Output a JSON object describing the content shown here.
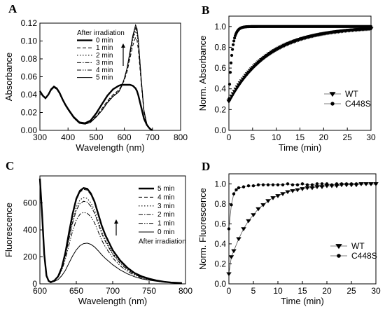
{
  "chart_data": [
    {
      "panel": "A",
      "type": "line",
      "xlabel": "Wavelength (nm)",
      "ylabel": "Absorbance",
      "xlim": [
        300,
        800
      ],
      "ylim": [
        0.0,
        0.12
      ],
      "xticks": [
        300,
        400,
        500,
        600,
        700,
        800
      ],
      "yticks": [
        0.0,
        0.02,
        0.04,
        0.06,
        0.08,
        0.1,
        0.12
      ],
      "legend_title": "After irradiation",
      "legend_position": "top-right",
      "annotation": "upward arrow next to 640 nm peak",
      "x": [
        300,
        310,
        320,
        330,
        340,
        350,
        360,
        370,
        380,
        390,
        400,
        420,
        440,
        460,
        480,
        500,
        520,
        540,
        560,
        580,
        590,
        600,
        610,
        620,
        630,
        640,
        645,
        650,
        660,
        670,
        680,
        690,
        700
      ],
      "series": [
        {
          "name": "0 min",
          "style": "solid-thick",
          "values": [
            0.044,
            0.039,
            0.036,
            0.04,
            0.046,
            0.049,
            0.047,
            0.042,
            0.035,
            0.029,
            0.024,
            0.015,
            0.009,
            0.008,
            0.011,
            0.019,
            0.029,
            0.039,
            0.046,
            0.05,
            0.051,
            0.051,
            0.051,
            0.051,
            0.05,
            0.047,
            0.044,
            0.039,
            0.026,
            0.013,
            0.006,
            0.002,
            0.0
          ]
        },
        {
          "name": "1 min",
          "style": "dash",
          "values": [
            0.044,
            0.039,
            0.036,
            0.04,
            0.045,
            0.048,
            0.046,
            0.041,
            0.034,
            0.028,
            0.023,
            0.014,
            0.008,
            0.007,
            0.01,
            0.016,
            0.024,
            0.033,
            0.04,
            0.045,
            0.05,
            0.056,
            0.066,
            0.08,
            0.095,
            0.104,
            0.101,
            0.09,
            0.053,
            0.02,
            0.007,
            0.002,
            0.0
          ]
        },
        {
          "name": "2 min",
          "style": "dot",
          "values": [
            0.044,
            0.039,
            0.036,
            0.04,
            0.045,
            0.048,
            0.046,
            0.041,
            0.034,
            0.028,
            0.023,
            0.014,
            0.008,
            0.007,
            0.009,
            0.015,
            0.023,
            0.032,
            0.039,
            0.044,
            0.05,
            0.057,
            0.068,
            0.084,
            0.101,
            0.111,
            0.108,
            0.096,
            0.056,
            0.021,
            0.007,
            0.002,
            0.0
          ]
        },
        {
          "name": "3 min",
          "style": "dashdot",
          "values": [
            0.044,
            0.039,
            0.036,
            0.04,
            0.045,
            0.048,
            0.046,
            0.041,
            0.034,
            0.028,
            0.023,
            0.014,
            0.008,
            0.007,
            0.009,
            0.015,
            0.022,
            0.031,
            0.038,
            0.043,
            0.049,
            0.058,
            0.069,
            0.086,
            0.104,
            0.114,
            0.111,
            0.099,
            0.057,
            0.021,
            0.007,
            0.002,
            0.0
          ]
        },
        {
          "name": "4 min",
          "style": "dashdotdot",
          "values": [
            0.044,
            0.039,
            0.036,
            0.04,
            0.045,
            0.048,
            0.046,
            0.041,
            0.034,
            0.028,
            0.023,
            0.014,
            0.008,
            0.007,
            0.009,
            0.015,
            0.022,
            0.031,
            0.038,
            0.043,
            0.049,
            0.058,
            0.07,
            0.087,
            0.105,
            0.116,
            0.113,
            0.1,
            0.058,
            0.022,
            0.007,
            0.002,
            0.0
          ]
        },
        {
          "name": "5 min",
          "style": "solid-thin",
          "values": [
            0.044,
            0.039,
            0.036,
            0.04,
            0.045,
            0.048,
            0.046,
            0.041,
            0.034,
            0.028,
            0.023,
            0.014,
            0.008,
            0.007,
            0.009,
            0.015,
            0.022,
            0.031,
            0.038,
            0.043,
            0.049,
            0.058,
            0.07,
            0.088,
            0.106,
            0.118,
            0.114,
            0.101,
            0.058,
            0.022,
            0.007,
            0.002,
            0.0
          ]
        }
      ]
    },
    {
      "panel": "B",
      "type": "scatter",
      "xlabel": "Time (min)",
      "ylabel": "Norm. Absorbance",
      "xlim": [
        0,
        30
      ],
      "ylim": [
        0.0,
        1.1
      ],
      "xticks": [
        0,
        5,
        10,
        15,
        20,
        25,
        30
      ],
      "yticks": [
        0.0,
        0.2,
        0.4,
        0.6,
        0.8,
        1.0
      ],
      "legend_position": "bottom-right",
      "series": [
        {
          "name": "WT",
          "marker": "triangle-down",
          "kind": "exp",
          "y0": 0.28,
          "tau": 8.5,
          "x_start": 0.0,
          "x_end": 30.0,
          "step": 0.3
        },
        {
          "name": "C448S",
          "marker": "circle",
          "kind": "exp",
          "y0": 0.3,
          "tau": 0.65,
          "x_start": 0.0,
          "x_end": 30.0,
          "step": 0.15
        }
      ]
    },
    {
      "panel": "C",
      "type": "line",
      "xlabel": "Wavelength (nm)",
      "ylabel": "Fluorescence",
      "xlim": [
        600,
        800
      ],
      "ylim": [
        0,
        800
      ],
      "xticks": [
        600,
        650,
        700,
        750,
        800
      ],
      "yticks": [
        0,
        200,
        400,
        600
      ],
      "legend_title": "After irradiation",
      "legend_position": "right",
      "annotation": "upward arrow next to legend",
      "x": [
        600,
        603,
        606,
        609,
        612,
        615,
        620,
        625,
        630,
        635,
        640,
        645,
        650,
        655,
        660,
        665,
        670,
        675,
        680,
        685,
        690,
        700,
        710,
        720,
        730,
        740,
        750,
        760,
        770,
        780,
        795
      ],
      "series": [
        {
          "name": "5 min",
          "style": "solid-thick",
          "values": [
            780,
            520,
            220,
            60,
            22,
            12,
            25,
            55,
            120,
            230,
            380,
            520,
            630,
            690,
            710,
            705,
            670,
            610,
            520,
            430,
            360,
            250,
            175,
            120,
            80,
            55,
            38,
            25,
            16,
            10,
            6
          ]
        },
        {
          "name": "4 min",
          "style": "dash",
          "values": [
            780,
            520,
            220,
            60,
            22,
            12,
            25,
            55,
            119,
            227,
            375,
            513,
            621,
            680,
            700,
            695,
            660,
            601,
            512,
            424,
            355,
            246,
            172,
            118,
            79,
            54,
            37,
            25,
            16,
            10,
            6
          ]
        },
        {
          "name": "3 min",
          "style": "dot",
          "values": [
            780,
            520,
            220,
            60,
            22,
            12,
            25,
            53,
            113,
            213,
            346,
            472,
            570,
            622,
            640,
            634,
            601,
            548,
            467,
            388,
            326,
            227,
            159,
            109,
            73,
            50,
            35,
            23,
            15,
            9,
            6
          ]
        },
        {
          "name": "2 min",
          "style": "dashdot",
          "values": [
            780,
            520,
            220,
            60,
            22,
            12,
            24,
            52,
            110,
            206,
            332,
            452,
            546,
            595,
            612,
            606,
            575,
            525,
            448,
            372,
            313,
            218,
            153,
            105,
            70,
            48,
            34,
            22,
            14,
            9,
            6
          ]
        },
        {
          "name": "1 min",
          "style": "dashdotdot",
          "values": [
            780,
            520,
            220,
            60,
            22,
            12,
            23,
            48,
            99,
            182,
            291,
            393,
            474,
            516,
            530,
            523,
            497,
            453,
            388,
            323,
            273,
            192,
            135,
            94,
            63,
            43,
            31,
            21,
            14,
            9,
            6
          ]
        },
        {
          "name": "0 min",
          "style": "solid-thin",
          "values": [
            780,
            520,
            220,
            60,
            22,
            12,
            18,
            32,
            60,
            100,
            155,
            208,
            252,
            283,
            298,
            302,
            293,
            274,
            246,
            215,
            188,
            142,
            104,
            75,
            53,
            37,
            27,
            19,
            13,
            9,
            6
          ]
        }
      ]
    },
    {
      "panel": "D",
      "type": "line",
      "xlabel": "Time (min)",
      "ylabel": "Norm. Fluorescence",
      "xlim": [
        0,
        30
      ],
      "ylim": [
        0.0,
        1.1
      ],
      "xticks": [
        0,
        5,
        10,
        15,
        20,
        25,
        30
      ],
      "yticks": [
        0.0,
        0.2,
        0.4,
        0.6,
        0.8,
        1.0
      ],
      "legend_position": "bottom-right",
      "series": [
        {
          "name": "WT",
          "marker": "triangle-down",
          "x": [
            0,
            0.5,
            1,
            2,
            3,
            4,
            5,
            6,
            7,
            8,
            9,
            10,
            11,
            12,
            13,
            14,
            15,
            16,
            17,
            18,
            19,
            20,
            21,
            22,
            23,
            24,
            25,
            26,
            27,
            28,
            29,
            30
          ],
          "values": [
            0.1,
            0.27,
            0.33,
            0.45,
            0.55,
            0.63,
            0.69,
            0.75,
            0.79,
            0.83,
            0.86,
            0.88,
            0.9,
            0.92,
            0.93,
            0.94,
            0.95,
            0.96,
            0.96,
            0.97,
            0.97,
            0.98,
            0.98,
            0.98,
            0.99,
            0.99,
            0.99,
            0.99,
            1.0,
            1.0,
            1.0,
            1.0
          ]
        },
        {
          "name": "C448S",
          "marker": "circle",
          "x": [
            0,
            0.5,
            1,
            1.5,
            2,
            3,
            4,
            5,
            6,
            7,
            8,
            9,
            10,
            11,
            12,
            13,
            14,
            15,
            16,
            17,
            18,
            19,
            20,
            21,
            22,
            23,
            24,
            25,
            26,
            27,
            28,
            29,
            30
          ],
          "values": [
            0.55,
            0.79,
            0.9,
            0.94,
            0.96,
            0.97,
            0.98,
            0.98,
            0.99,
            0.99,
            0.99,
            0.99,
            0.99,
            0.99,
            1.0,
            0.99,
            0.99,
            1.0,
            0.99,
            0.99,
            1.0,
            1.0,
            1.0,
            0.99,
            1.0,
            1.0,
            1.0,
            1.0,
            1.0,
            1.0,
            1.0,
            1.0,
            1.0
          ]
        }
      ]
    }
  ]
}
